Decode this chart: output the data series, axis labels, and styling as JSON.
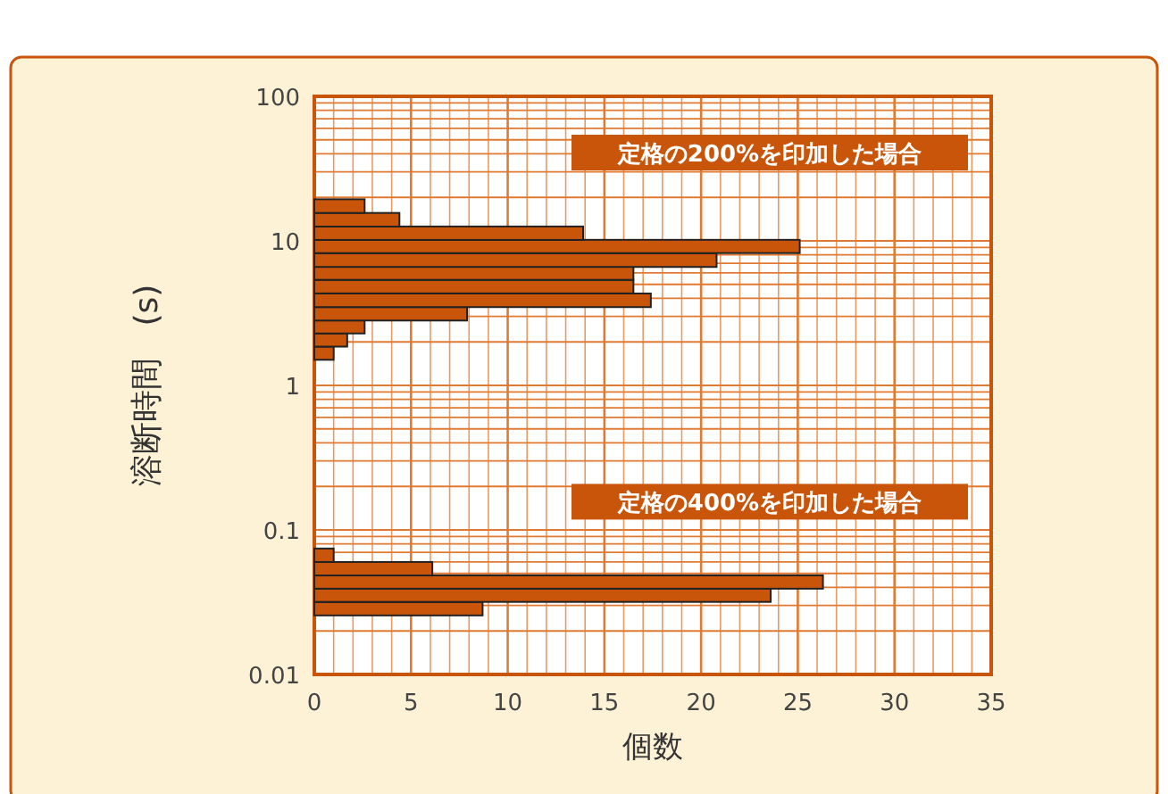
{
  "chart_data": {
    "type": "bar",
    "orientation": "horizontal",
    "xlabel": "個数",
    "ylabel": "溶断時間　(s)",
    "log": "y",
    "grid": true,
    "xlim": [
      0,
      35
    ],
    "xticks": [
      0,
      {
        "value": 1,
        "label": null
      },
      {
        "value": 2,
        "label": null
      },
      {
        "value": 3,
        "label": null
      },
      {
        "value": 4,
        "label": null
      },
      5,
      {
        "value": 6,
        "label": null
      },
      {
        "value": 7,
        "label": null
      },
      {
        "value": 8,
        "label": null
      },
      {
        "value": 9,
        "label": null
      },
      10,
      {
        "value": 11,
        "label": null
      },
      {
        "value": 12,
        "label": null
      },
      {
        "value": 13,
        "label": null
      },
      {
        "value": 14,
        "label": null
      },
      15,
      {
        "value": 16,
        "label": null
      },
      {
        "value": 17,
        "label": null
      },
      {
        "value": 18,
        "label": null
      },
      {
        "value": 19,
        "label": null
      },
      20,
      {
        "value": 21,
        "label": null
      },
      {
        "value": 22,
        "label": null
      },
      {
        "value": 23,
        "label": null
      },
      {
        "value": 24,
        "label": null
      },
      25,
      {
        "value": 26,
        "label": null
      },
      {
        "value": 27,
        "label": null
      },
      {
        "value": 28,
        "label": null
      },
      {
        "value": 29,
        "label": null
      },
      30,
      {
        "value": 31,
        "label": null
      },
      {
        "value": 32,
        "label": null
      },
      {
        "value": 33,
        "label": null
      },
      {
        "value": 34,
        "label": null
      },
      35
    ],
    "ylim": [
      0.01,
      100
    ],
    "yticks": [
      0.01,
      {
        "value": 0.02,
        "label": null
      },
      {
        "value": 0.03,
        "label": null
      },
      {
        "value": 0.04,
        "label": null
      },
      {
        "value": 0.05,
        "label": null
      },
      {
        "value": 0.06,
        "label": null
      },
      {
        "value": 0.07,
        "label": null
      },
      {
        "value": 0.08,
        "label": null
      },
      {
        "value": 0.09,
        "label": null
      },
      0.1,
      {
        "value": 0.2,
        "label": null
      },
      {
        "value": 0.3,
        "label": null
      },
      {
        "value": 0.4,
        "label": null
      },
      {
        "value": 0.5,
        "label": null
      },
      {
        "value": 0.6,
        "label": null
      },
      {
        "value": 0.7,
        "label": null
      },
      {
        "value": 0.8,
        "label": null
      },
      {
        "value": 0.9,
        "label": null
      },
      1,
      {
        "value": 2,
        "label": null
      },
      {
        "value": 3,
        "label": null
      },
      {
        "value": 4,
        "label": null
      },
      {
        "value": 5,
        "label": null
      },
      {
        "value": 6,
        "label": null
      },
      {
        "value": 7,
        "label": null
      },
      {
        "value": 8,
        "label": null
      },
      {
        "value": 9,
        "label": null
      },
      10,
      {
        "value": 20,
        "label": null
      },
      {
        "value": 30,
        "label": null
      },
      {
        "value": 40,
        "label": null
      },
      {
        "value": 50,
        "label": null
      },
      {
        "value": 60,
        "label": null
      },
      {
        "value": 70,
        "label": null
      },
      {
        "value": 80,
        "label": null
      },
      {
        "value": 90,
        "label": null
      },
      100
    ],
    "series": [
      {
        "color": "#c8550a",
        "x": [
          1.67,
          2.06,
          2.54,
          3.13,
          3.88,
          4.82,
          5.97,
          7.36,
          9.15,
          11.3,
          14.0,
          17.4
        ],
        "values": [
          1.0,
          1.7,
          2.6,
          7.9,
          17.4,
          16.5,
          16.5,
          20.8,
          25.1,
          13.9,
          4.4,
          2.6
        ]
      },
      {
        "color": "#c8550a",
        "x": [
          0.0285,
          0.0353,
          0.0436,
          0.0539,
          0.0668
        ],
        "values": [
          8.7,
          23.6,
          26.3,
          6.1,
          1.0
        ]
      }
    ],
    "annotations": [
      "定格の200%を印加した場合",
      "定格の400%を印加した場合"
    ]
  }
}
